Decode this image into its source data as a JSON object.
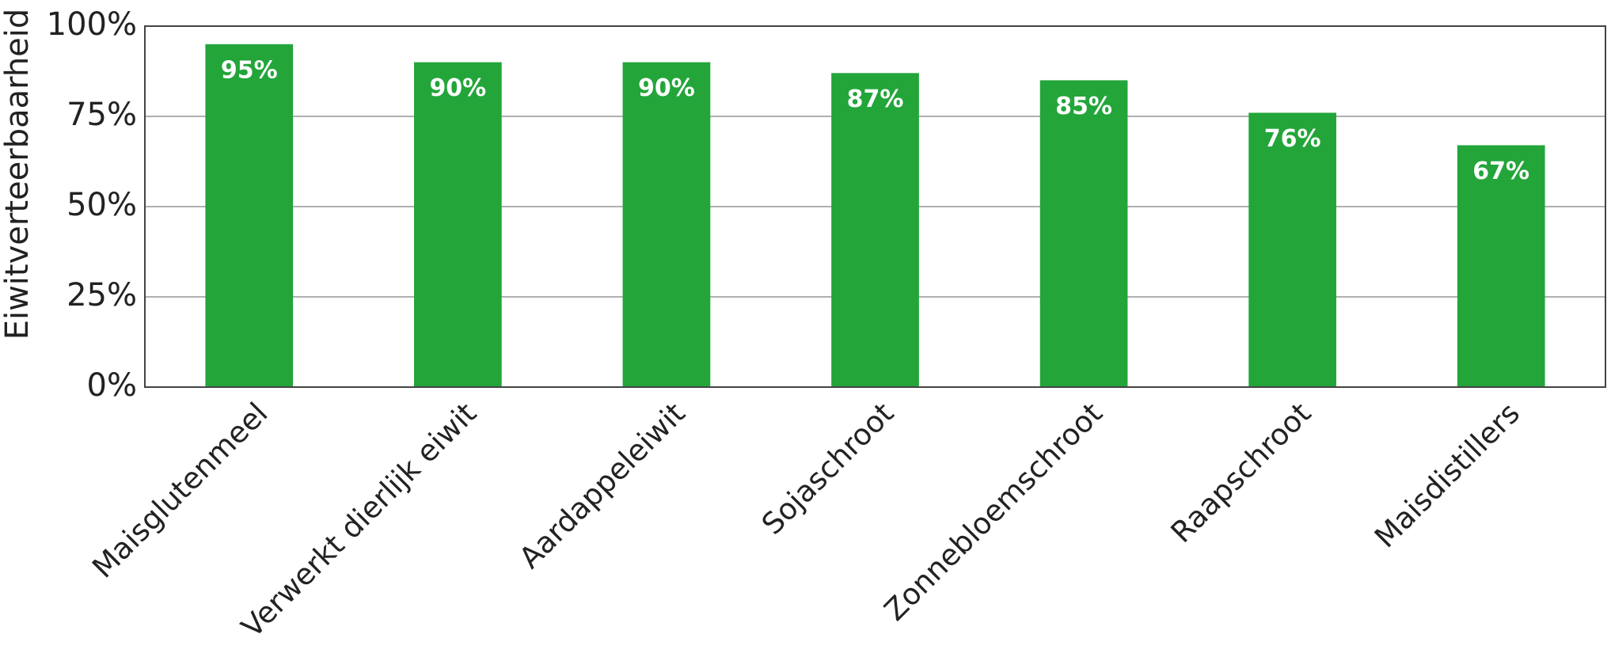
{
  "chart_data": {
    "type": "bar",
    "y_label": "Eiwitverteerbaarheid",
    "categories": [
      "Maisglutenmeel",
      "Verwerkt dierlijk eiwit",
      "Aardappeleiwit",
      "Sojaschroot",
      "Zonnebloemschroot",
      "Raapschroot",
      "Maisdistillers"
    ],
    "values": [
      95,
      90,
      90,
      87,
      85,
      76,
      67
    ],
    "value_labels": [
      "95%",
      "90%",
      "90%",
      "87%",
      "85%",
      "76%",
      "67%"
    ],
    "color": "#23a53a",
    "ylim": [
      0,
      100
    ],
    "yticks": [
      {
        "value": 0,
        "label": "0%"
      },
      {
        "value": 25,
        "label": "25%"
      },
      {
        "value": 50,
        "label": "50%"
      },
      {
        "value": 75,
        "label": "75%"
      },
      {
        "value": 100,
        "label": "100%"
      }
    ],
    "grid": true
  }
}
